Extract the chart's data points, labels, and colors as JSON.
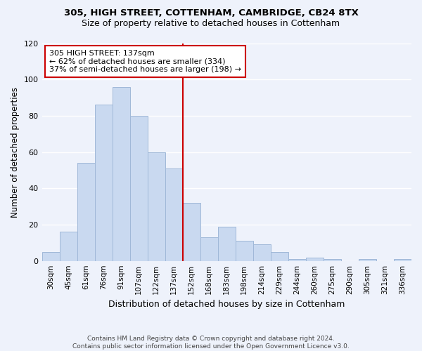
{
  "title1": "305, HIGH STREET, COTTENHAM, CAMBRIDGE, CB24 8TX",
  "title2": "Size of property relative to detached houses in Cottenham",
  "xlabel": "Distribution of detached houses by size in Cottenham",
  "ylabel": "Number of detached properties",
  "footnote1": "Contains HM Land Registry data © Crown copyright and database right 2024.",
  "footnote2": "Contains public sector information licensed under the Open Government Licence v3.0.",
  "bin_labels": [
    "30sqm",
    "45sqm",
    "61sqm",
    "76sqm",
    "91sqm",
    "107sqm",
    "122sqm",
    "137sqm",
    "152sqm",
    "168sqm",
    "183sqm",
    "198sqm",
    "214sqm",
    "229sqm",
    "244sqm",
    "260sqm",
    "275sqm",
    "290sqm",
    "305sqm",
    "321sqm",
    "336sqm"
  ],
  "bar_values": [
    5,
    16,
    54,
    86,
    96,
    80,
    60,
    51,
    32,
    13,
    19,
    11,
    9,
    5,
    1,
    2,
    1,
    0,
    1,
    0,
    1
  ],
  "bar_color": "#c9d9f0",
  "bar_edge_color": "#a0b8d8",
  "vline_bin": 7,
  "vline_color": "#cc0000",
  "annotation_title": "305 HIGH STREET: 137sqm",
  "annotation_line1": "← 62% of detached houses are smaller (334)",
  "annotation_line2": "37% of semi-detached houses are larger (198) →",
  "annotation_box_color": "#ffffff",
  "annotation_box_edge": "#cc0000",
  "ylim": [
    0,
    120
  ],
  "yticks": [
    0,
    20,
    40,
    60,
    80,
    100,
    120
  ],
  "background_color": "#eef2fb"
}
